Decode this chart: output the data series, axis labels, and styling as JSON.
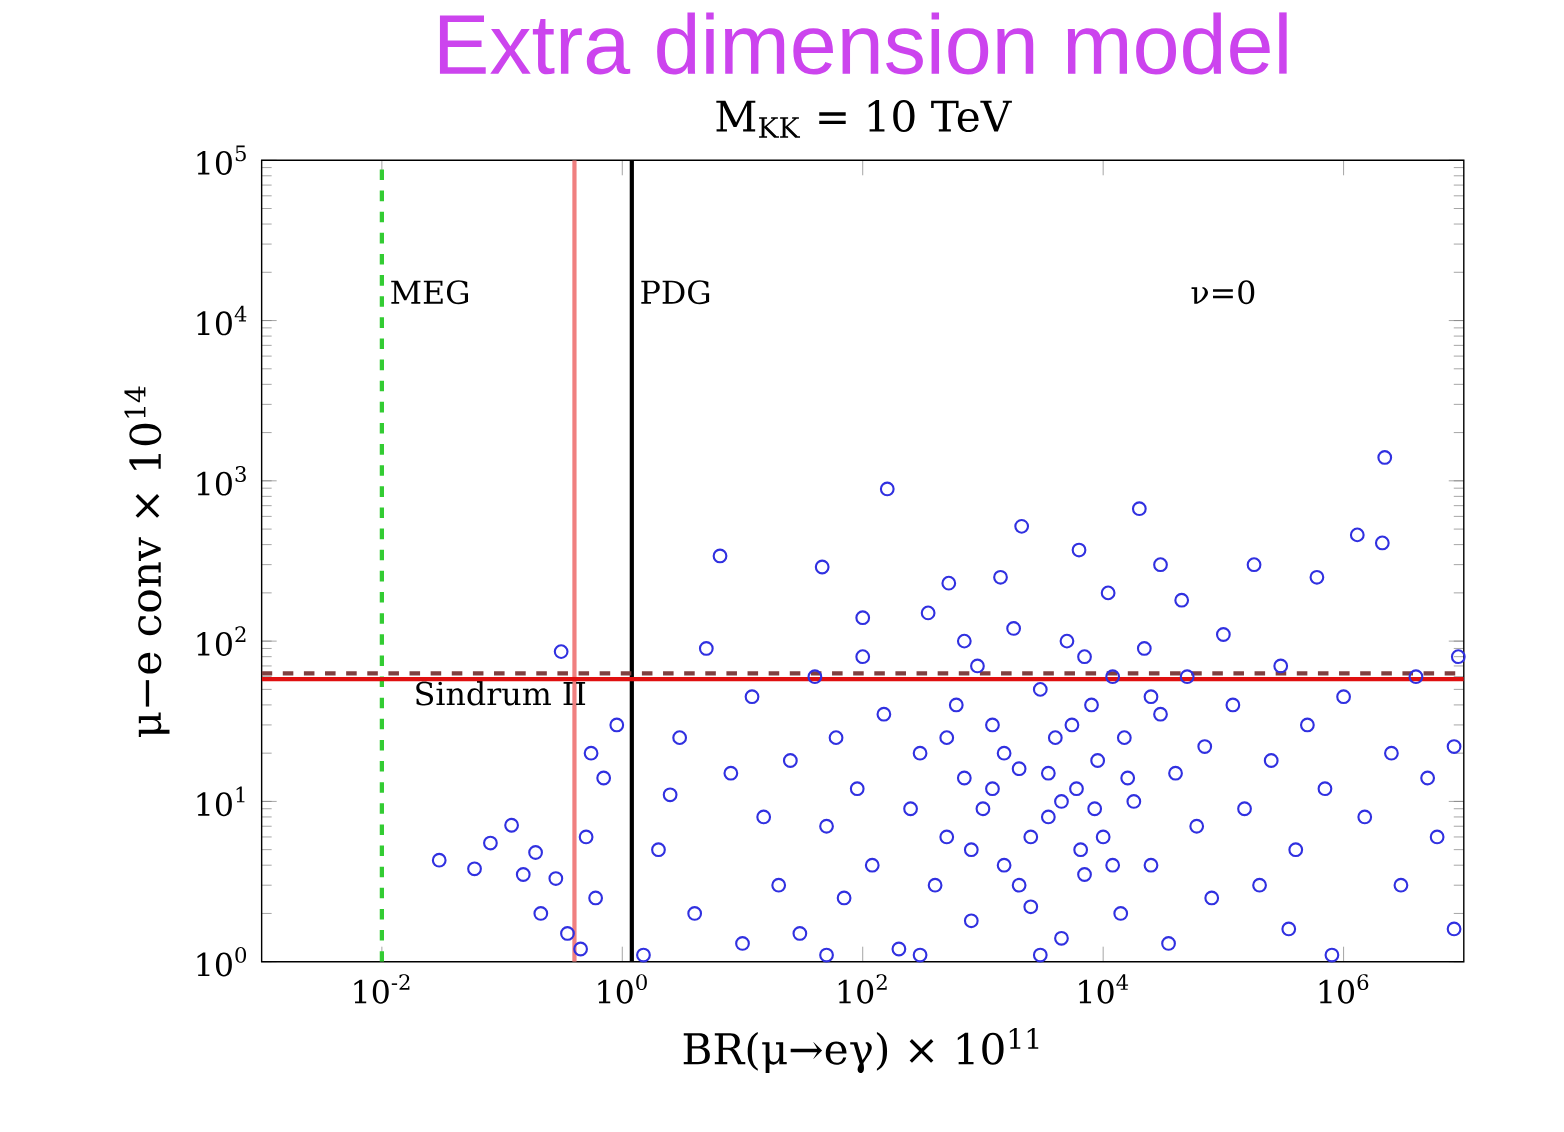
{
  "chart_data": {
    "type": "scatter",
    "title": "Extra dimension model",
    "subtitle": "M$_{KK}$ = 10 TeV",
    "xlabel": "BR(μ→eγ) × 10$^{11}$",
    "ylabel": "μ−e conv × 10$^{14}$",
    "log": "xy",
    "xlim": [
      0.001,
      10000000
    ],
    "ylim": [
      1,
      100000
    ],
    "xticks": [
      {
        "value": 0.01,
        "label": "10$^{-2}$"
      },
      {
        "value": 1,
        "label": "10$^{0}$"
      },
      {
        "value": 100,
        "label": "10$^{2}$"
      },
      {
        "value": 10000,
        "label": "10$^{4}$"
      },
      {
        "value": 1000000,
        "label": "10$^{6}$"
      }
    ],
    "yticks": [
      {
        "value": 1,
        "label": "10$^{0}$"
      },
      {
        "value": 10,
        "label": "10$^{1}$"
      },
      {
        "value": 100,
        "label": "10$^{2}$"
      },
      {
        "value": 1000,
        "label": "10$^{3}$"
      },
      {
        "value": 10000,
        "label": "10$^{4}$"
      },
      {
        "value": 100000,
        "label": "10$^{5}$"
      }
    ],
    "marker": "circle",
    "annotations": [
      "ν=0"
    ],
    "ref_lines": [
      {
        "axis": "x",
        "value": 0.01,
        "label": "MEG",
        "color": "#33cc33",
        "line_style": "dashed"
      },
      {
        "axis": "x",
        "value": 1.2,
        "label": "PDG",
        "color": "#000000",
        "line_style": "solid"
      },
      {
        "axis": "x",
        "value": 0.4,
        "color": "#f08080",
        "line_style": "solid"
      },
      {
        "axis": "y",
        "value": 63,
        "label": "Sindrum II",
        "color": "#804040",
        "line_style": "dashed"
      },
      {
        "axis": "y",
        "value": 58,
        "color": "#e01010",
        "line_style": "solid"
      }
    ],
    "series": [
      {
        "color": "#3030e0",
        "x": [
          0.03,
          0.059,
          0.12,
          0.19,
          0.21,
          0.31,
          0.28,
          0.08,
          0.15,
          0.35,
          0.45,
          0.5,
          0.6,
          0.7,
          0.9,
          0.55,
          1.5,
          2,
          3,
          2.5,
          4,
          5,
          6.5,
          8,
          10,
          12,
          15,
          20,
          25,
          30,
          46,
          40,
          50,
          60,
          70,
          90,
          100,
          120,
          150,
          160,
          200,
          250,
          300,
          350,
          400,
          500,
          520,
          600,
          700,
          800,
          900,
          1000,
          1200,
          1400,
          1500,
          1800,
          2000,
          2100,
          2500,
          3000,
          3500,
          4000,
          4500,
          5000,
          6000,
          6300,
          7000,
          8000,
          9000,
          10000,
          11000,
          12000,
          14000,
          15000,
          18000,
          20000,
          22000,
          25000,
          30000,
          35000,
          40000,
          45000,
          50000,
          60000,
          70000,
          80000,
          100000,
          120000,
          150000,
          180000,
          200000,
          250000,
          300000,
          350000,
          400000,
          500000,
          600000,
          700000,
          800000,
          1000000,
          1300000,
          1500000,
          2100000,
          2200000,
          2500000,
          3000000,
          4000000,
          5000000,
          6000000,
          8300000,
          8300000,
          9000000,
          3000,
          300,
          50,
          7000,
          700,
          30000,
          100,
          1500,
          2500,
          3500,
          4500,
          5500,
          6500,
          8500,
          2000,
          1200,
          800,
          500,
          12000,
          16000,
          25000
        ],
        "values": [
          4.3,
          3.8,
          7.1,
          4.8,
          2.0,
          86,
          3.3,
          5.5,
          3.5,
          1.5,
          1.2,
          6,
          2.5,
          14,
          30,
          20,
          1.1,
          5,
          25,
          11,
          2,
          90,
          340,
          15,
          1.3,
          45,
          8,
          3,
          18,
          1.5,
          290,
          60,
          7,
          25,
          2.5,
          12,
          80,
          4,
          35,
          890,
          1.2,
          9,
          20,
          150,
          3,
          6,
          230,
          40,
          14,
          1.8,
          70,
          9,
          30,
          250,
          4,
          120,
          16,
          520,
          2.2,
          50,
          8,
          25,
          1.4,
          100,
          12,
          370,
          3.5,
          40,
          18,
          6,
          200,
          60,
          2,
          25,
          10,
          670,
          90,
          4,
          35,
          1.3,
          15,
          180,
          60,
          7,
          22,
          2.5,
          110,
          40,
          9,
          300,
          3,
          18,
          70,
          1.6,
          5,
          30,
          250,
          12,
          1.1,
          45,
          460,
          8,
          410,
          1400,
          20,
          3,
          60,
          14,
          6,
          22,
          1.6,
          80,
          1.1,
          1.1,
          1.1,
          80,
          100,
          300,
          140,
          20,
          6,
          15,
          10,
          30,
          5,
          9,
          3,
          12,
          5,
          25,
          4,
          14,
          45
        ]
      }
    ]
  }
}
